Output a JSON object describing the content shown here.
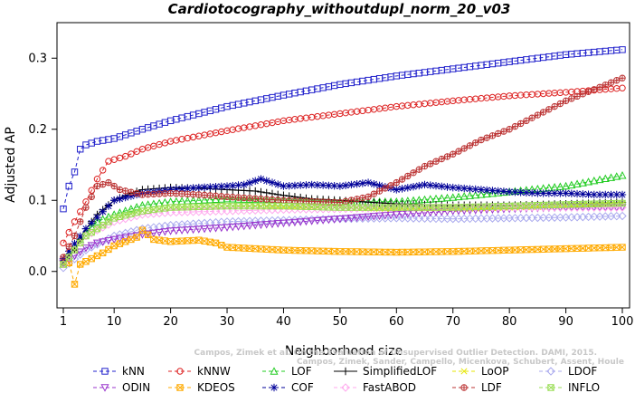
{
  "chart_data": {
    "type": "line",
    "title": "Cardiotocography_withoutdupl_norm_20_v03",
    "xlabel": "Neighborhood size",
    "ylabel": "Adjusted AP",
    "watermark": [
      "Campos, Zimek et al. On the Evaluation of Unsupervised Outlier Detection. DAMI, 2015.",
      "Campos, Zimek, Sander, Campello, Micenkova, Schubert, Assent, Houle"
    ],
    "xlim": [
      1,
      100
    ],
    "ylim": [
      -0.05,
      0.35
    ],
    "x_ticks": [
      1,
      10,
      20,
      30,
      40,
      50,
      60,
      70,
      80,
      90,
      100
    ],
    "y_ticks": [
      0.0,
      0.1,
      0.2,
      0.3
    ],
    "y_tick_labels": [
      "0.0",
      "0.1",
      "0.2",
      "0.3"
    ],
    "legend_position": "bottom",
    "series": [
      {
        "name": "kNN",
        "color": "#2222cc",
        "marker": "square",
        "dash": "4,3",
        "points": [
          [
            1,
            0.088
          ],
          [
            2,
            0.12
          ],
          [
            3,
            0.14
          ],
          [
            4,
            0.172
          ],
          [
            5,
            0.178
          ],
          [
            7,
            0.183
          ],
          [
            10,
            0.187
          ],
          [
            15,
            0.2
          ],
          [
            20,
            0.212
          ],
          [
            30,
            0.232
          ],
          [
            40,
            0.248
          ],
          [
            50,
            0.263
          ],
          [
            60,
            0.275
          ],
          [
            70,
            0.285
          ],
          [
            80,
            0.295
          ],
          [
            90,
            0.305
          ],
          [
            100,
            0.312
          ]
        ]
      },
      {
        "name": "kNNW",
        "color": "#dd2222",
        "marker": "circle",
        "dash": "4,3",
        "points": [
          [
            1,
            0.04
          ],
          [
            3,
            0.07
          ],
          [
            5,
            0.098
          ],
          [
            7,
            0.13
          ],
          [
            9,
            0.155
          ],
          [
            12,
            0.162
          ],
          [
            15,
            0.172
          ],
          [
            20,
            0.183
          ],
          [
            30,
            0.198
          ],
          [
            40,
            0.212
          ],
          [
            50,
            0.222
          ],
          [
            60,
            0.232
          ],
          [
            70,
            0.24
          ],
          [
            80,
            0.247
          ],
          [
            90,
            0.252
          ],
          [
            100,
            0.258
          ]
        ]
      },
      {
        "name": "LOF",
        "color": "#22cc22",
        "marker": "triangle-up",
        "dash": "4,3",
        "points": [
          [
            1,
            0.01
          ],
          [
            3,
            0.035
          ],
          [
            5,
            0.055
          ],
          [
            7,
            0.07
          ],
          [
            10,
            0.08
          ],
          [
            15,
            0.093
          ],
          [
            20,
            0.098
          ],
          [
            30,
            0.102
          ],
          [
            40,
            0.1
          ],
          [
            50,
            0.098
          ],
          [
            60,
            0.098
          ],
          [
            70,
            0.104
          ],
          [
            80,
            0.112
          ],
          [
            90,
            0.12
          ],
          [
            100,
            0.135
          ]
        ]
      },
      {
        "name": "SimplifiedLOF",
        "color": "#000000",
        "marker": "plus",
        "dash": "",
        "points": [
          [
            1,
            0.015
          ],
          [
            3,
            0.03
          ],
          [
            5,
            0.06
          ],
          [
            7,
            0.08
          ],
          [
            10,
            0.1
          ],
          [
            13,
            0.11
          ],
          [
            15,
            0.115
          ],
          [
            20,
            0.118
          ],
          [
            25,
            0.117
          ],
          [
            30,
            0.115
          ],
          [
            35,
            0.113
          ],
          [
            40,
            0.107
          ],
          [
            45,
            0.102
          ],
          [
            50,
            0.1
          ],
          [
            60,
            0.095
          ],
          [
            70,
            0.093
          ],
          [
            80,
            0.093
          ],
          [
            90,
            0.095
          ],
          [
            100,
            0.097
          ]
        ]
      },
      {
        "name": "LoOP",
        "color": "#e6e600",
        "marker": "x",
        "dash": "4,3",
        "points": [
          [
            1,
            0.01
          ],
          [
            5,
            0.05
          ],
          [
            10,
            0.075
          ],
          [
            15,
            0.085
          ],
          [
            20,
            0.09
          ],
          [
            30,
            0.092
          ],
          [
            40,
            0.09
          ],
          [
            50,
            0.09
          ],
          [
            60,
            0.088
          ],
          [
            70,
            0.088
          ],
          [
            80,
            0.09
          ],
          [
            90,
            0.092
          ],
          [
            100,
            0.095
          ]
        ]
      },
      {
        "name": "LDOF",
        "color": "#aaaaee",
        "marker": "diamond",
        "dash": "4,3",
        "points": [
          [
            1,
            0.005
          ],
          [
            5,
            0.03
          ],
          [
            10,
            0.05
          ],
          [
            15,
            0.06
          ],
          [
            20,
            0.065
          ],
          [
            30,
            0.07
          ],
          [
            40,
            0.072
          ],
          [
            50,
            0.074
          ],
          [
            60,
            0.075
          ],
          [
            70,
            0.074
          ],
          [
            80,
            0.075
          ],
          [
            90,
            0.076
          ],
          [
            100,
            0.078
          ]
        ]
      },
      {
        "name": "ODIN",
        "color": "#9933cc",
        "marker": "triangle-down",
        "dash": "4,3",
        "points": [
          [
            1,
            0.012
          ],
          [
            3,
            0.022
          ],
          [
            5,
            0.033
          ],
          [
            7,
            0.04
          ],
          [
            10,
            0.045
          ],
          [
            15,
            0.052
          ],
          [
            20,
            0.057
          ],
          [
            30,
            0.062
          ],
          [
            40,
            0.068
          ],
          [
            50,
            0.074
          ],
          [
            60,
            0.08
          ],
          [
            70,
            0.085
          ],
          [
            80,
            0.088
          ],
          [
            90,
            0.09
          ],
          [
            100,
            0.09
          ]
        ]
      },
      {
        "name": "KDEOS",
        "color": "#ffaa00",
        "marker": "square-x",
        "dash": "4,3",
        "points": [
          [
            1,
            0.01
          ],
          [
            2,
            0.012
          ],
          [
            3,
            -0.018
          ],
          [
            4,
            0.01
          ],
          [
            6,
            0.018
          ],
          [
            8,
            0.026
          ],
          [
            10,
            0.036
          ],
          [
            12,
            0.042
          ],
          [
            14,
            0.048
          ],
          [
            15,
            0.058
          ],
          [
            17,
            0.045
          ],
          [
            20,
            0.042
          ],
          [
            25,
            0.044
          ],
          [
            28,
            0.04
          ],
          [
            30,
            0.034
          ],
          [
            40,
            0.03
          ],
          [
            50,
            0.028
          ],
          [
            60,
            0.027
          ],
          [
            70,
            0.028
          ],
          [
            80,
            0.03
          ],
          [
            90,
            0.032
          ],
          [
            100,
            0.034
          ]
        ]
      },
      {
        "name": "COF",
        "color": "#000099",
        "marker": "star",
        "dash": "4,3",
        "points": [
          [
            1,
            0.018
          ],
          [
            5,
            0.06
          ],
          [
            10,
            0.1
          ],
          [
            15,
            0.11
          ],
          [
            20,
            0.115
          ],
          [
            25,
            0.118
          ],
          [
            30,
            0.12
          ],
          [
            33,
            0.122
          ],
          [
            36,
            0.13
          ],
          [
            40,
            0.12
          ],
          [
            45,
            0.122
          ],
          [
            50,
            0.12
          ],
          [
            55,
            0.125
          ],
          [
            60,
            0.115
          ],
          [
            65,
            0.122
          ],
          [
            70,
            0.118
          ],
          [
            75,
            0.115
          ],
          [
            80,
            0.112
          ],
          [
            85,
            0.11
          ],
          [
            90,
            0.11
          ],
          [
            95,
            0.108
          ],
          [
            100,
            0.108
          ]
        ]
      },
      {
        "name": "FastABOD",
        "color": "#ffaaee",
        "marker": "diamond",
        "dash": "4,3",
        "points": [
          [
            1,
            0.01
          ],
          [
            5,
            0.05
          ],
          [
            10,
            0.07
          ],
          [
            15,
            0.08
          ],
          [
            20,
            0.083
          ],
          [
            30,
            0.085
          ],
          [
            40,
            0.087
          ],
          [
            50,
            0.088
          ],
          [
            60,
            0.09
          ],
          [
            70,
            0.09
          ],
          [
            80,
            0.09
          ],
          [
            90,
            0.09
          ],
          [
            100,
            0.09
          ]
        ]
      },
      {
        "name": "LDF",
        "color": "#bb3333",
        "marker": "circle-plus",
        "dash": "4,3",
        "points": [
          [
            1,
            0.02
          ],
          [
            3,
            0.05
          ],
          [
            5,
            0.09
          ],
          [
            7,
            0.12
          ],
          [
            9,
            0.125
          ],
          [
            11,
            0.115
          ],
          [
            15,
            0.108
          ],
          [
            20,
            0.11
          ],
          [
            25,
            0.108
          ],
          [
            30,
            0.105
          ],
          [
            40,
            0.1
          ],
          [
            50,
            0.097
          ],
          [
            55,
            0.105
          ],
          [
            60,
            0.125
          ],
          [
            65,
            0.148
          ],
          [
            70,
            0.165
          ],
          [
            75,
            0.185
          ],
          [
            80,
            0.2
          ],
          [
            85,
            0.22
          ],
          [
            90,
            0.24
          ],
          [
            95,
            0.256
          ],
          [
            100,
            0.272
          ]
        ]
      },
      {
        "name": "INFLO",
        "color": "#99dd55",
        "marker": "square-x",
        "dash": "4,3",
        "points": [
          [
            1,
            0.01
          ],
          [
            5,
            0.05
          ],
          [
            10,
            0.075
          ],
          [
            15,
            0.085
          ],
          [
            20,
            0.09
          ],
          [
            30,
            0.092
          ],
          [
            40,
            0.092
          ],
          [
            50,
            0.09
          ],
          [
            60,
            0.09
          ],
          [
            70,
            0.09
          ],
          [
            80,
            0.092
          ],
          [
            90,
            0.094
          ],
          [
            100,
            0.096
          ]
        ]
      }
    ]
  }
}
